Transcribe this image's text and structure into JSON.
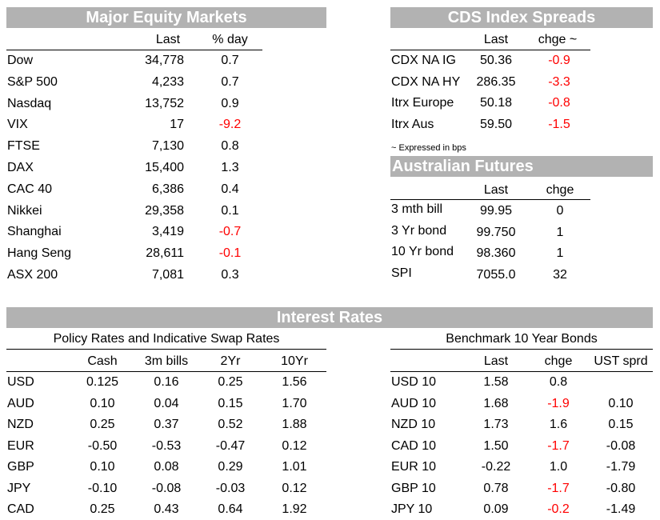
{
  "equity": {
    "title": "Major Equity Markets",
    "col_last": "Last",
    "col_pct": "% day",
    "rows": [
      {
        "name": "Dow",
        "last": "34,778",
        "pct": "0.7",
        "neg": false
      },
      {
        "name": "S&P 500",
        "last": "4,233",
        "pct": "0.7",
        "neg": false
      },
      {
        "name": "Nasdaq",
        "last": "13,752",
        "pct": "0.9",
        "neg": false
      },
      {
        "name": "VIX",
        "last": "17",
        "pct": "-9.2",
        "neg": true
      },
      {
        "name": "FTSE",
        "last": "7,130",
        "pct": "0.8",
        "neg": false
      },
      {
        "name": "DAX",
        "last": "15,400",
        "pct": "1.3",
        "neg": false
      },
      {
        "name": "CAC 40",
        "last": "6,386",
        "pct": "0.4",
        "neg": false
      },
      {
        "name": "Nikkei",
        "last": "29,358",
        "pct": "0.1",
        "neg": false
      },
      {
        "name": "Shanghai",
        "last": "3,419",
        "pct": "-0.7",
        "neg": true
      },
      {
        "name": "Hang Seng",
        "last": "28,611",
        "pct": "-0.1",
        "neg": true
      },
      {
        "name": "ASX 200",
        "last": "7,081",
        "pct": "0.3",
        "neg": false
      }
    ]
  },
  "cds": {
    "title": "CDS Index Spreads",
    "col_last": "Last",
    "col_chge": "chge ~",
    "rows": [
      {
        "name": "CDX NA IG",
        "last": "50.36",
        "chge": "-0.9",
        "neg": true
      },
      {
        "name": "CDX NA HY",
        "last": "286.35",
        "chge": "-3.3",
        "neg": true
      },
      {
        "name": "Itrx Europe",
        "last": "50.18",
        "chge": "-0.8",
        "neg": true
      },
      {
        "name": "Itrx Aus",
        "last": "59.50",
        "chge": "-1.5",
        "neg": true
      }
    ],
    "footnote": "~ Expressed in bps"
  },
  "futures": {
    "title": "Australian Futures",
    "col_last": "Last",
    "col_chge": "chge",
    "rows": [
      {
        "name": "3 mth bill",
        "last": "99.95",
        "chge": "0"
      },
      {
        "name": "3 Yr bond",
        "last": "99.750",
        "chge": "1"
      },
      {
        "name": "10 Yr bond",
        "last": "98.360",
        "chge": "1"
      },
      {
        "name": "SPI",
        "last": "7055.0",
        "chge": "32"
      }
    ]
  },
  "rates": {
    "title": "Interest Rates",
    "policy_subtitle": "Policy Rates and Indicative Swap Rates",
    "policy_cols": [
      "Cash",
      "3m bills",
      "2Yr",
      "10Yr"
    ],
    "policy_rows": [
      {
        "ccy": "USD",
        "vals": [
          "0.125",
          "0.16",
          "0.25",
          "1.56"
        ]
      },
      {
        "ccy": "AUD",
        "vals": [
          "0.10",
          "0.04",
          "0.15",
          "1.70"
        ]
      },
      {
        "ccy": "NZD",
        "vals": [
          "0.25",
          "0.37",
          "0.52",
          "1.88"
        ]
      },
      {
        "ccy": "EUR",
        "vals": [
          "-0.50",
          "-0.53",
          "-0.47",
          "0.12"
        ]
      },
      {
        "ccy": "GBP",
        "vals": [
          "0.10",
          "0.08",
          "0.29",
          "1.01"
        ]
      },
      {
        "ccy": "JPY",
        "vals": [
          "-0.10",
          "-0.08",
          "-0.03",
          "0.12"
        ]
      },
      {
        "ccy": "CAD",
        "vals": [
          "0.25",
          "0.43",
          "0.64",
          "1.92"
        ]
      }
    ],
    "bonds_subtitle": "Benchmark 10 Year Bonds",
    "bond_cols": [
      "Last",
      "chge",
      "UST sprd"
    ],
    "bond_rows": [
      {
        "name": "USD 10",
        "last": "1.58",
        "chge": "0.8",
        "neg": false,
        "sprd": ""
      },
      {
        "name": "AUD 10",
        "last": "1.68",
        "chge": "-1.9",
        "neg": true,
        "sprd": "0.10"
      },
      {
        "name": "NZD 10",
        "last": "1.73",
        "chge": "1.6",
        "neg": false,
        "sprd": "0.15"
      },
      {
        "name": "CAD 10",
        "last": "1.50",
        "chge": "-1.7",
        "neg": true,
        "sprd": "-0.08"
      },
      {
        "name": "EUR 10",
        "last": "-0.22",
        "chge": "1.0",
        "neg": false,
        "sprd": "-1.79"
      },
      {
        "name": "GBP 10",
        "last": "0.78",
        "chge": "-1.7",
        "neg": true,
        "sprd": "-0.80"
      },
      {
        "name": "JPY 10",
        "last": "0.09",
        "chge": "-0.2",
        "neg": true,
        "sprd": "-1.49"
      }
    ]
  }
}
